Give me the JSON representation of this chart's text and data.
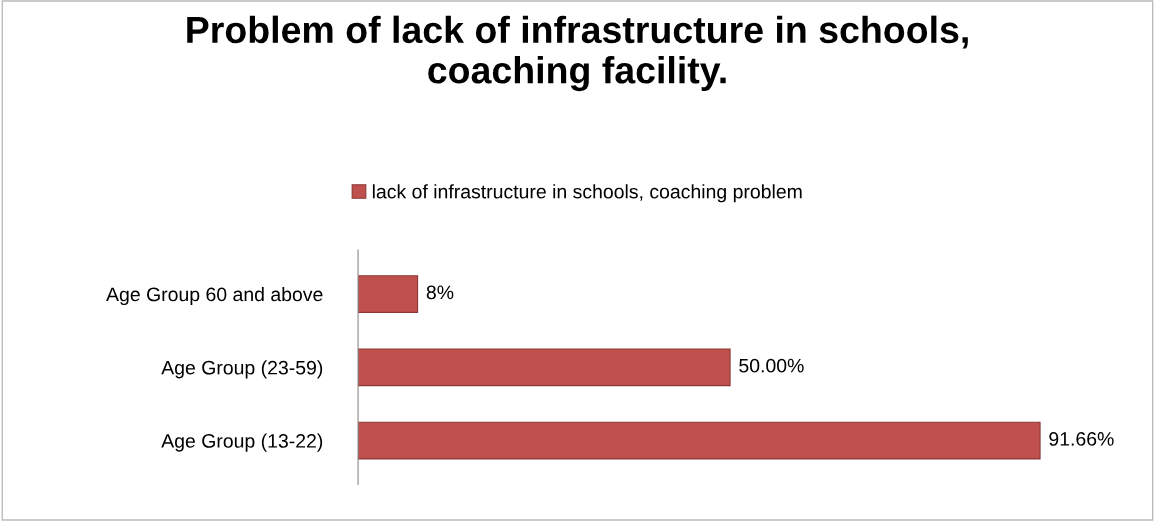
{
  "chart_data": {
    "type": "bar",
    "orientation": "horizontal",
    "title": "Problem of lack of infrastructure in schools,\ncoaching facility.",
    "categories": [
      "Age Group 60 and above",
      "Age Group (23-59)",
      "Age Group (13-22)"
    ],
    "series": [
      {
        "name": "lack of infrastructure in schools, coaching problem",
        "color": "#c0504d",
        "values": [
          8,
          50.0,
          91.66
        ],
        "value_labels": [
          "8%",
          "50.00%",
          "91.66%"
        ]
      }
    ],
    "legend": "top",
    "grid": false
  }
}
